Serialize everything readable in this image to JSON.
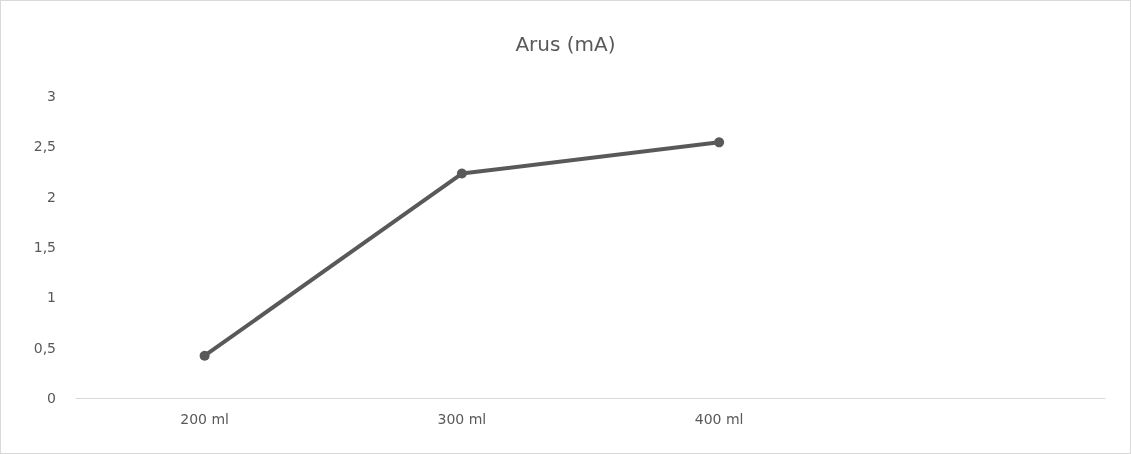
{
  "chart_data": {
    "type": "line",
    "title": "Arus (mA)",
    "categories": [
      "200 ml",
      "300 ml",
      "400 ml",
      null
    ],
    "series": [
      {
        "color": "#595959",
        "values": [
          0.42,
          2.23,
          2.54,
          null
        ]
      }
    ],
    "ylim": [
      0,
      3
    ],
    "yticks": [
      0,
      {
        "value": 0.5,
        "label": "0,5"
      },
      1,
      {
        "value": 1.5,
        "label": "1,5"
      },
      2,
      {
        "value": 2.5,
        "label": "2,5"
      },
      3
    ],
    "grid": false,
    "marker": "circle",
    "line_style": "solid"
  }
}
